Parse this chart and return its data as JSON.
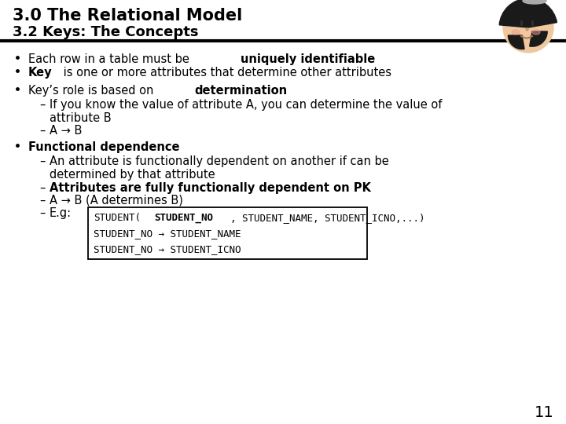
{
  "title1": "3.0 The Relational Model",
  "title2": "3.2 Keys: The Concepts",
  "bg_color": "#ffffff",
  "divider_color": "#000000",
  "page_number": "11",
  "bullet1_normal": "Each row in a table must be ",
  "bullet1_bold": "uniquely identifiable",
  "bullet2_bold": "Key",
  "bullet2_normal": " is one or more attributes that determine other attributes",
  "bullet3_normal": "Key’s role is based on ",
  "bullet3_bold": "determination",
  "sub1": "If you know the value of attribute A, you can determine the value of",
  "sub1b": "attribute B",
  "sub2": "A → B",
  "bullet4_bold": "Functional dependence",
  "sub3": "An attribute is functionally dependent on another if can be",
  "sub3b": "determined by that attribute",
  "sub4_bold": "Attributes are fully functionally dependent on PK",
  "sub5": "A → B (A determines B)",
  "sub6_prefix": "E.g:",
  "box_line1_normal": "STUDENT(",
  "box_line1_bold": "STUDENT_NO",
  "box_line1_end": ", STUDENT_NAME, STUDENT_ICNO,...)",
  "box_line2": "STUDENT_NO → STUDENT_NAME",
  "box_line3": "STUDENT_NO → STUDENT_ICNO",
  "title1_fontsize": 15,
  "title2_fontsize": 13,
  "body_fontsize": 10.5,
  "small_fontsize": 9.0,
  "face_color": "#f0c8a0",
  "hair_color": "#1a1a1a",
  "hat_color": "#888888"
}
